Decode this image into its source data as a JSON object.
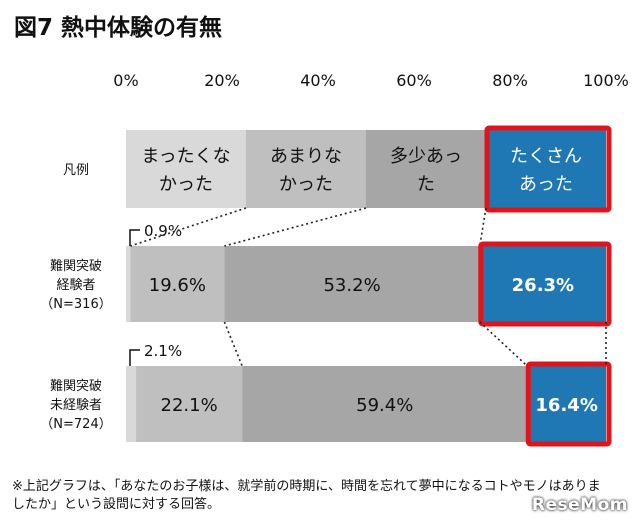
{
  "title": "図7 熱中体験の有無",
  "footnote": "※上記グラフは、「あなたのお子様は、就学前の時期に、時間を忘れて夢中になるコトやモノはありましたか」という設問に対する回答。",
  "watermark": "ReseMom",
  "colors": {
    "cat1": "#d9d9d9",
    "cat2": "#bfbfbf",
    "cat3": "#a6a6a6",
    "cat4": "#1f78b4",
    "highlight": "#e0151b"
  },
  "chart_data": {
    "type": "bar",
    "orientation": "horizontal-stacked-100",
    "xlim": [
      0,
      100
    ],
    "ticks": [
      "0%",
      "20%",
      "40%",
      "60%",
      "80%",
      "100%"
    ],
    "legend_row_label": "凡例",
    "series": [
      {
        "name": "まったくなかった",
        "legend_lines": [
          "まったくな",
          "かった"
        ]
      },
      {
        "name": "あまりなかった",
        "legend_lines": [
          "あまりな",
          "かった"
        ]
      },
      {
        "name": "多少あった",
        "legend_lines": [
          "多少あっ",
          "た"
        ]
      },
      {
        "name": "たくさんあった",
        "legend_lines": [
          "たくさん",
          "あった"
        ]
      }
    ],
    "categories": [
      {
        "label_lines": [
          "難関突破",
          "経験者",
          "（N=316）"
        ],
        "values": [
          0.9,
          19.6,
          53.2,
          26.3
        ],
        "labels": [
          "0.9%",
          "19.6%",
          "53.2%",
          "26.3%"
        ]
      },
      {
        "label_lines": [
          "難関突破",
          "未経験者",
          "（N=724）"
        ],
        "values": [
          2.1,
          22.1,
          59.4,
          16.4
        ],
        "labels": [
          "2.1%",
          "22.1%",
          "59.4%",
          "16.4%"
        ]
      }
    ]
  }
}
